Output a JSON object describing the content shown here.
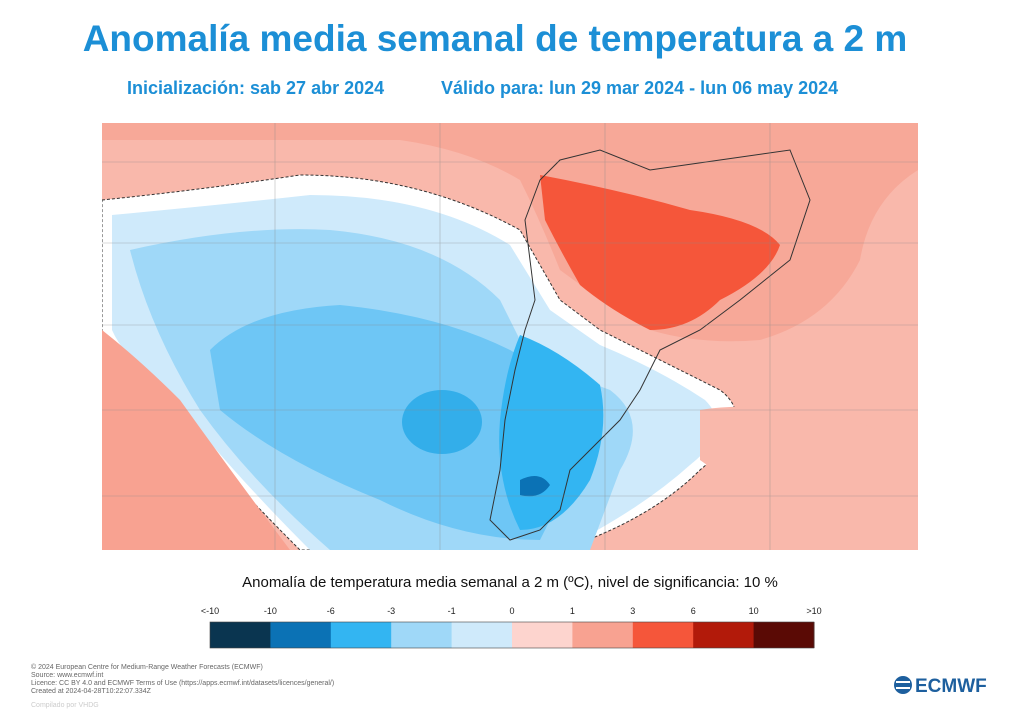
{
  "header": {
    "title": "Anomalía media semanal de temperatura a 2 m",
    "initialization": "Inicialización: sab 27 abr 2024",
    "valid": "Válido para: lun 29 mar 2024 - lun 06 may 2024"
  },
  "legend": {
    "title": "Anomalía de temperatura media semanal a 2 m (ºC), nivel de significancia: 10 %",
    "labels": [
      "<-10",
      "-10",
      "-6",
      "-3",
      "-1",
      "0",
      "1",
      "3",
      "6",
      "10",
      ">10"
    ],
    "colors": [
      "#0a3550",
      "#0b72b5",
      "#33b5f2",
      "#9fd8f8",
      "#cfeafb",
      "#fdd4ce",
      "#f8a291",
      "#f5563a",
      "#b21a0a",
      "#5a0a05"
    ]
  },
  "footer": {
    "lines": [
      "© 2024 European Centre for Medium-Range Weather Forecasts (ECMWF)",
      "Source: www.ecmwf.int",
      "Licence: CC BY 4.0 and ECMWF Terms of Use (https://apps.ecmwf.int/datasets/licences/general/)",
      "Created at 2024-04-28T10:22:07.334Z"
    ],
    "credit": "Compilado por VHDG",
    "logo": "ECMWF"
  }
}
